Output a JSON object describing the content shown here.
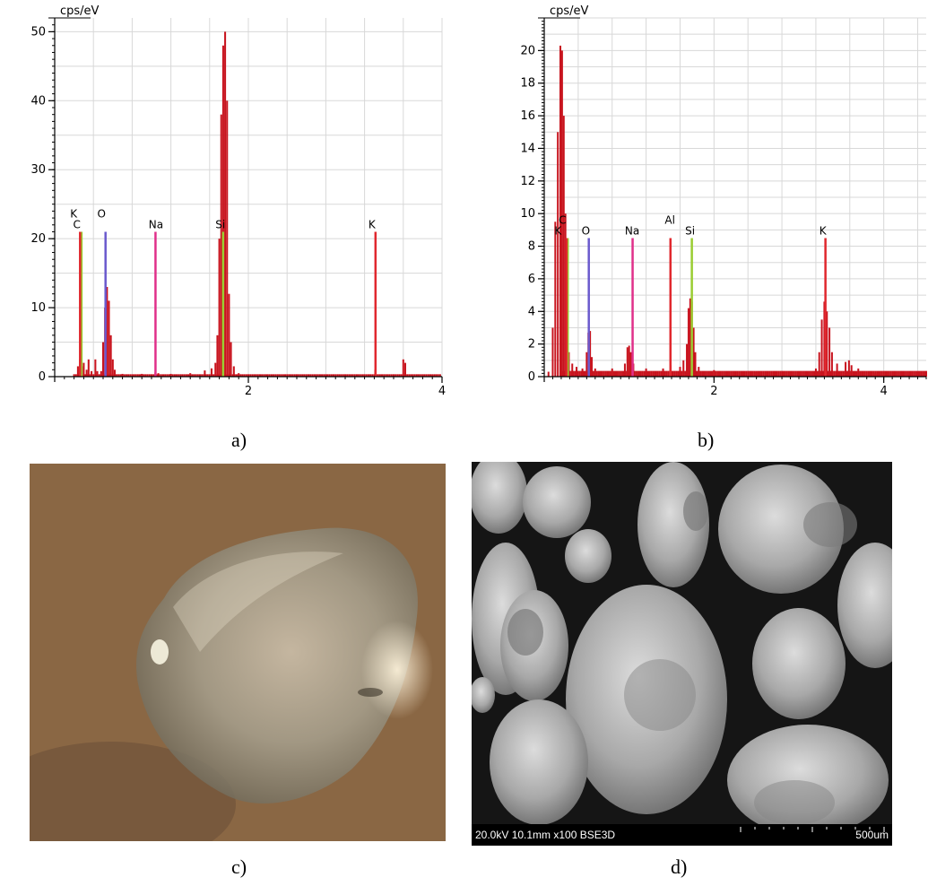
{
  "colors": {
    "spectrum_fill": "#c8141e",
    "grid": "#d8d8d8",
    "marker_green": "#9acd32",
    "marker_purple": "#6a5acd",
    "marker_magenta": "#e0308a",
    "marker_red": "#e0282e"
  },
  "captions": {
    "a": "a)",
    "b": "b)",
    "c": "c)",
    "d": "d)"
  },
  "chart_data": [
    {
      "type": "bar",
      "panel": "a",
      "ylabel": "cps/eV",
      "xlim": [
        0,
        4.0
      ],
      "ylim": [
        0,
        52
      ],
      "yticks": [
        0,
        10,
        20,
        30,
        40,
        50
      ],
      "xticks": [
        2,
        4
      ],
      "x_minor_step": 0.4,
      "grid": true,
      "spectrum": [
        [
          0.24,
          1.5
        ],
        [
          0.26,
          2.5
        ],
        [
          0.28,
          1.5
        ],
        [
          0.3,
          2.0
        ],
        [
          0.33,
          1.0
        ],
        [
          0.35,
          2.5
        ],
        [
          0.38,
          0.8
        ],
        [
          0.42,
          2.5
        ],
        [
          0.44,
          0.8
        ],
        [
          0.48,
          0.8
        ],
        [
          0.5,
          5.0
        ],
        [
          0.52,
          10.0
        ],
        [
          0.54,
          13.0
        ],
        [
          0.56,
          11.0
        ],
        [
          0.58,
          6.0
        ],
        [
          0.6,
          2.5
        ],
        [
          0.62,
          1.0
        ],
        [
          0.7,
          0.4
        ],
        [
          0.9,
          0.4
        ],
        [
          1.04,
          0.6
        ],
        [
          1.07,
          0.5
        ],
        [
          1.2,
          0.4
        ],
        [
          1.4,
          0.5
        ],
        [
          1.55,
          0.9
        ],
        [
          1.62,
          1.2
        ],
        [
          1.66,
          2.0
        ],
        [
          1.68,
          6.0
        ],
        [
          1.7,
          20.0
        ],
        [
          1.72,
          38.0
        ],
        [
          1.74,
          48.0
        ],
        [
          1.76,
          50.0
        ],
        [
          1.78,
          40.0
        ],
        [
          1.8,
          12.0
        ],
        [
          1.82,
          5.0
        ],
        [
          1.85,
          1.5
        ],
        [
          1.9,
          0.5
        ],
        [
          2.2,
          0.3
        ],
        [
          2.8,
          0.3
        ],
        [
          3.31,
          1.0
        ],
        [
          3.6,
          2.5
        ],
        [
          3.62,
          2.0
        ],
        [
          3.9,
          0.2
        ]
      ],
      "markers": [
        {
          "label": "C",
          "x": 0.277,
          "height": 21,
          "color": "#9acd32"
        },
        {
          "label": "K",
          "x": 0.262,
          "height": 21,
          "color": "#e0282e"
        },
        {
          "label": "O",
          "x": 0.525,
          "height": 21,
          "color": "#6a5acd"
        },
        {
          "label": "Na",
          "x": 1.041,
          "height": 21,
          "color": "#e0308a"
        },
        {
          "label": "Si",
          "x": 1.739,
          "height": 21,
          "color": "#9acd32"
        },
        {
          "label": "K",
          "x": 3.313,
          "height": 21,
          "color": "#e0282e"
        }
      ],
      "label_rows": [
        {
          "text": "K",
          "x": 0.16,
          "row": 0
        },
        {
          "text": "O",
          "x": 0.44,
          "row": 0
        },
        {
          "text": "C",
          "x": 0.19,
          "row": 1
        },
        {
          "text": "Na",
          "x": 0.97,
          "row": 1
        },
        {
          "text": "Si",
          "x": 1.66,
          "row": 1
        },
        {
          "text": "K",
          "x": 3.24,
          "row": 1
        }
      ]
    },
    {
      "type": "bar",
      "panel": "b",
      "ylabel": "cps/eV",
      "xlim": [
        0,
        4.5
      ],
      "ylim": [
        0,
        22
      ],
      "yticks": [
        0,
        2,
        4,
        6,
        8,
        10,
        12,
        14,
        16,
        18,
        20
      ],
      "xticks": [
        2,
        4
      ],
      "x_minor_step": 0.4,
      "grid": true,
      "spectrum": [
        [
          0.05,
          0.3
        ],
        [
          0.1,
          3.0
        ],
        [
          0.13,
          9.5
        ],
        [
          0.16,
          15.0
        ],
        [
          0.19,
          20.3
        ],
        [
          0.21,
          20.0
        ],
        [
          0.23,
          16.0
        ],
        [
          0.25,
          10.0
        ],
        [
          0.27,
          4.0
        ],
        [
          0.29,
          1.5
        ],
        [
          0.33,
          0.8
        ],
        [
          0.38,
          0.6
        ],
        [
          0.45,
          0.5
        ],
        [
          0.5,
          1.5
        ],
        [
          0.52,
          2.7
        ],
        [
          0.54,
          2.8
        ],
        [
          0.56,
          1.2
        ],
        [
          0.6,
          0.5
        ],
        [
          0.8,
          0.5
        ],
        [
          0.95,
          0.8
        ],
        [
          0.98,
          1.8
        ],
        [
          1.0,
          1.9
        ],
        [
          1.02,
          1.5
        ],
        [
          1.05,
          0.8
        ],
        [
          1.2,
          0.5
        ],
        [
          1.4,
          0.5
        ],
        [
          1.49,
          0.7
        ],
        [
          1.6,
          0.6
        ],
        [
          1.64,
          1.0
        ],
        [
          1.68,
          2.0
        ],
        [
          1.7,
          4.2
        ],
        [
          1.72,
          4.8
        ],
        [
          1.74,
          4.6
        ],
        [
          1.76,
          3.0
        ],
        [
          1.78,
          1.5
        ],
        [
          1.82,
          0.6
        ],
        [
          2.0,
          0.4
        ],
        [
          2.5,
          0.3
        ],
        [
          3.0,
          0.3
        ],
        [
          3.2,
          0.5
        ],
        [
          3.24,
          1.5
        ],
        [
          3.27,
          3.5
        ],
        [
          3.3,
          4.6
        ],
        [
          3.33,
          4.0
        ],
        [
          3.36,
          3.0
        ],
        [
          3.39,
          1.5
        ],
        [
          3.45,
          0.8
        ],
        [
          3.55,
          0.9
        ],
        [
          3.59,
          1.0
        ],
        [
          3.62,
          0.7
        ],
        [
          3.7,
          0.5
        ],
        [
          3.9,
          0.2
        ],
        [
          4.3,
          0.1
        ]
      ],
      "markers": [
        {
          "label": "C",
          "x": 0.277,
          "height": 8.5,
          "color": "#9acd32"
        },
        {
          "label": "K",
          "x": 0.262,
          "height": 8.5,
          "color": "#e0282e"
        },
        {
          "label": "O",
          "x": 0.525,
          "height": 8.5,
          "color": "#6a5acd"
        },
        {
          "label": "Na",
          "x": 1.041,
          "height": 8.5,
          "color": "#e0308a"
        },
        {
          "label": "Al",
          "x": 1.487,
          "height": 8.5,
          "color": "#e0282e"
        },
        {
          "label": "Si",
          "x": 1.739,
          "height": 8.5,
          "color": "#9acd32"
        },
        {
          "label": "K",
          "x": 3.313,
          "height": 8.5,
          "color": "#e0282e"
        }
      ],
      "label_rows": [
        {
          "text": "C",
          "x": 0.17,
          "row": 0
        },
        {
          "text": "Al",
          "x": 1.42,
          "row": 0
        },
        {
          "text": "K",
          "x": 0.12,
          "row": 1
        },
        {
          "text": "O",
          "x": 0.44,
          "row": 1
        },
        {
          "text": "Na",
          "x": 0.95,
          "row": 1
        },
        {
          "text": "Si",
          "x": 1.66,
          "row": 1
        },
        {
          "text": "K",
          "x": 3.24,
          "row": 1
        }
      ]
    }
  ],
  "sem_image": {
    "info_bar": "20.0kV 10.1mm x100 BSE3D",
    "scale_label": "500um"
  }
}
